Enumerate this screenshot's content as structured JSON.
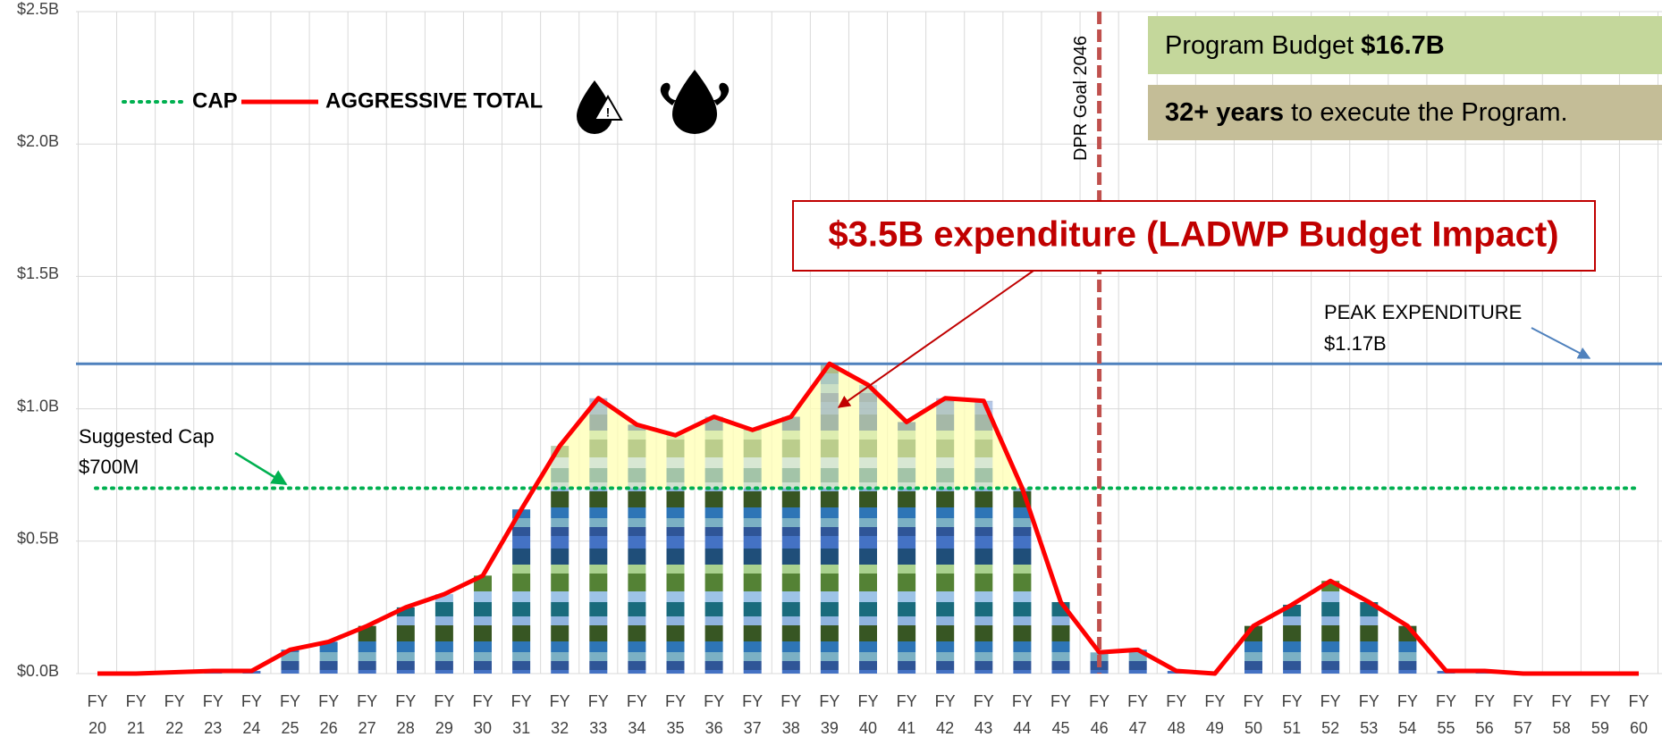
{
  "chart_data": {
    "type": "bar",
    "categories": [
      "FY 20",
      "FY 21",
      "FY 22",
      "FY 23",
      "FY 24",
      "FY 25",
      "FY 26",
      "FY 27",
      "FY 28",
      "FY 29",
      "FY 30",
      "FY 31",
      "FY 32",
      "FY 33",
      "FY 34",
      "FY 35",
      "FY 36",
      "FY 37",
      "FY 38",
      "FY 39",
      "FY 40",
      "FY 41",
      "FY 42",
      "FY 43",
      "FY 44",
      "FY 45",
      "FY 46",
      "FY 47",
      "FY 48",
      "FY 49",
      "FY 50",
      "FY 51",
      "FY 52",
      "FY 53",
      "FY 54",
      "FY 55",
      "FY 56",
      "FY 57",
      "FY 58",
      "FY 59",
      "FY 60"
    ],
    "series": [
      {
        "name": "AGGRESSIVE TOTAL",
        "color": "#ff0000",
        "values": [
          0,
          0,
          0.005,
          0.01,
          0.01,
          0.09,
          0.12,
          0.18,
          0.25,
          0.3,
          0.37,
          0.62,
          0.86,
          1.04,
          0.94,
          0.9,
          0.97,
          0.92,
          0.97,
          1.17,
          1.09,
          0.95,
          1.04,
          1.03,
          0.7,
          0.27,
          0.08,
          0.09,
          0.01,
          0,
          0.18,
          0.26,
          0.35,
          0.27,
          0.18,
          0.01,
          0.01,
          0,
          0,
          0,
          0
        ]
      }
    ],
    "cap": {
      "name": "CAP",
      "value": 0.7,
      "color": "#00b050",
      "annotation": "Suggested Cap",
      "value_label": "$700M"
    },
    "peak": {
      "value": 1.17,
      "color": "#4f81bd",
      "annotation": "PEAK EXPENDITURE",
      "value_label": "$1.17B"
    },
    "dpr_goal": {
      "label": "DPR Goal 2046",
      "x": "FY 46",
      "color": "#c0504d"
    },
    "callout": "$3.5B expenditure (LADWP Budget Impact)",
    "budget_box": {
      "text": "Program Budget ",
      "bold": "$16.7B"
    },
    "years_box": {
      "bold": "32+ years",
      "text": " to execute the Program."
    },
    "ylim": [
      0,
      2.5
    ],
    "yticks": [
      {
        "value": 0,
        "label": "$0.0B"
      },
      {
        "value": 0.5,
        "label": "$0.5B"
      },
      {
        "value": 1.0,
        "label": "$1.0B"
      },
      {
        "value": 1.5,
        "label": "$1.5B"
      },
      {
        "value": 2.0,
        "label": "$2.0B"
      },
      {
        "value": 2.5,
        "label": "$2.5B"
      }
    ],
    "grid": true
  }
}
